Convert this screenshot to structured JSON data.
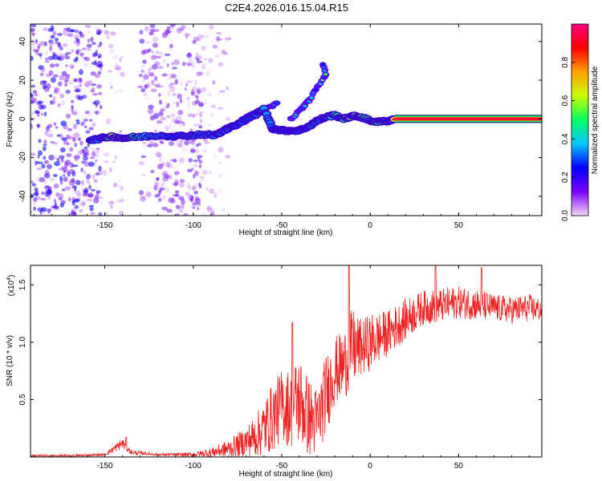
{
  "title": "C2E4.2026.016.15.04.R15",
  "chart_data": [
    {
      "type": "heatmap",
      "xlabel": "Height of straight line (km)",
      "ylabel": "Frequency (Hz)",
      "xlim": [
        -192,
        97
      ],
      "ylim": [
        -50,
        49
      ],
      "xticks": [
        -150,
        -100,
        -50,
        0,
        50
      ],
      "yticks": [
        -40,
        -20,
        0,
        20,
        40
      ],
      "colorbar": {
        "label": "Normalized spectral amplitude",
        "range": [
          0.0,
          1.0
        ],
        "ticks": [
          0.0,
          0.2,
          0.4,
          0.6,
          0.8
        ],
        "stops": [
          "#f5d8f5",
          "#7a00ff",
          "#0000ff",
          "#00c8ff",
          "#00ff60",
          "#c8ff00",
          "#ffa000",
          "#ff0000",
          "#ff0080"
        ]
      },
      "ridge": [
        {
          "x": -158,
          "f": -11,
          "a": 0.4
        },
        {
          "x": -152,
          "f": -10,
          "a": 0.55
        },
        {
          "x": -146,
          "f": -9,
          "a": 0.85
        },
        {
          "x": -140,
          "f": -10,
          "a": 0.9
        },
        {
          "x": -134,
          "f": -9.5,
          "a": 0.7
        },
        {
          "x": -126,
          "f": -9,
          "a": 0.55
        },
        {
          "x": -118,
          "f": -8.5,
          "a": 0.5
        },
        {
          "x": -110,
          "f": -9,
          "a": 0.4
        },
        {
          "x": -102,
          "f": -8.5,
          "a": 0.45
        },
        {
          "x": -95,
          "f": -8,
          "a": 0.5
        },
        {
          "x": -88,
          "f": -8.5,
          "a": 0.5
        },
        {
          "x": -82,
          "f": -6,
          "a": 0.5
        },
        {
          "x": -76,
          "f": -3,
          "a": 0.45
        },
        {
          "x": -70,
          "f": 0,
          "a": 0.4
        },
        {
          "x": -65,
          "f": 2.5,
          "a": 0.45
        },
        {
          "x": -60,
          "f": 5,
          "a": 0.5
        },
        {
          "x": -55,
          "f": -5,
          "a": 0.45
        },
        {
          "x": -50,
          "f": -6,
          "a": 0.45
        },
        {
          "x": -45,
          "f": -6,
          "a": 0.45
        },
        {
          "x": -40,
          "f": -6,
          "a": 0.45
        },
        {
          "x": -35,
          "f": -4,
          "a": 0.45
        },
        {
          "x": -30,
          "f": -1,
          "a": 0.5
        },
        {
          "x": -25,
          "f": 1,
          "a": 0.55
        },
        {
          "x": -20,
          "f": 2,
          "a": 0.65
        },
        {
          "x": -15,
          "f": 0,
          "a": 0.7
        },
        {
          "x": -10,
          "f": 1.5,
          "a": 0.85
        },
        {
          "x": -5,
          "f": 1,
          "a": 0.75
        },
        {
          "x": 0,
          "f": -1,
          "a": 0.65
        },
        {
          "x": 5,
          "f": -1.5,
          "a": 0.75
        },
        {
          "x": 10,
          "f": -1,
          "a": 0.7
        },
        {
          "x": 14,
          "f": 0,
          "a": 0.95
        },
        {
          "x": 97,
          "f": 0,
          "a": 1.0
        }
      ],
      "branches": [
        {
          "name": "upper-branch",
          "points": [
            [
              -85,
              -6
            ],
            [
              -75,
              -3
            ],
            [
              -68,
              0
            ],
            [
              -62,
              3
            ],
            [
              -57,
              6
            ],
            [
              -52,
              8
            ]
          ]
        },
        {
          "name": "rising-branch",
          "points": [
            [
              -45,
              0
            ],
            [
              -40,
              4
            ],
            [
              -35,
              9
            ],
            [
              -30,
              16
            ],
            [
              -25,
              23
            ],
            [
              -27,
              29
            ]
          ]
        }
      ]
    },
    {
      "type": "line",
      "xlabel": "Height of straight line (km)",
      "ylabel": "SNR (10 * v/v)",
      "yscale_label": "(x10",
      "yscale_exponent": "4",
      "yscale_suffix": ")",
      "xlim": [
        -192,
        97
      ],
      "ylim": [
        0,
        1.67
      ],
      "xticks": [
        -150,
        -100,
        -50,
        0,
        50
      ],
      "yticks": [
        0.5,
        1.0,
        1.5
      ],
      "color": "#ee2222",
      "envelope": {
        "x": [
          -192,
          -170,
          -150,
          -140,
          -135,
          -120,
          -100,
          -90,
          -80,
          -72,
          -65,
          -60,
          -55,
          -50,
          -45,
          -40,
          -35,
          -30,
          -25,
          -20,
          -15,
          -10,
          -5,
          0,
          10,
          20,
          30,
          40,
          50,
          60,
          70,
          80,
          90,
          97
        ],
        "center": [
          0.01,
          0.01,
          0.02,
          0.12,
          0.04,
          0.02,
          0.02,
          0.04,
          0.07,
          0.12,
          0.18,
          0.25,
          0.35,
          0.45,
          0.42,
          0.5,
          0.35,
          0.3,
          0.55,
          0.75,
          0.8,
          0.95,
          0.95,
          1.0,
          1.08,
          1.2,
          1.3,
          1.32,
          1.35,
          1.33,
          1.3,
          1.28,
          1.3,
          1.28
        ],
        "spread": [
          0.01,
          0.01,
          0.01,
          0.05,
          0.02,
          0.01,
          0.02,
          0.04,
          0.08,
          0.12,
          0.18,
          0.25,
          0.3,
          0.32,
          0.35,
          0.4,
          0.35,
          0.3,
          0.35,
          0.3,
          0.3,
          0.35,
          0.25,
          0.25,
          0.2,
          0.18,
          0.15,
          0.15,
          0.14,
          0.14,
          0.12,
          0.12,
          0.12,
          0.1
        ]
      },
      "peaks": [
        {
          "x": -138,
          "y": 0.17
        },
        {
          "x": -44,
          "y": 1.17
        },
        {
          "x": -12,
          "y": 1.67
        },
        {
          "x": 37,
          "y": 1.67
        },
        {
          "x": 63,
          "y": 1.65
        }
      ]
    }
  ]
}
